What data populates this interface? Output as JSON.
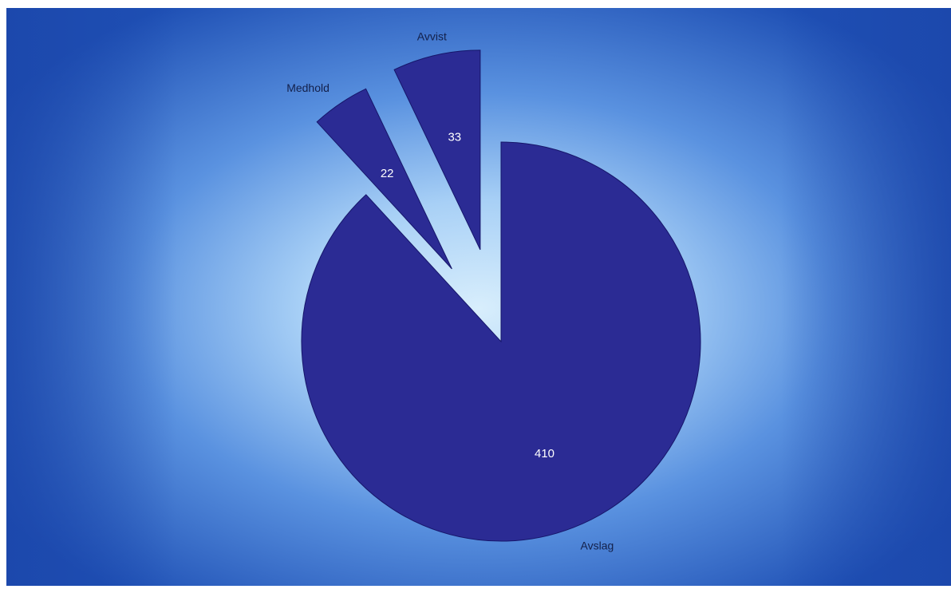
{
  "chart_data": {
    "type": "pie",
    "title": "",
    "categories": [
      "Avslag",
      "Medhold",
      "Avvist"
    ],
    "values": [
      410,
      22,
      33
    ],
    "exploded": [
      false,
      true,
      true
    ],
    "legend": "none",
    "colors": {
      "slice": "#2b2b94",
      "slice_edge": "#16166a",
      "value_label": "#ffffff",
      "name_label": "#13204a"
    }
  }
}
